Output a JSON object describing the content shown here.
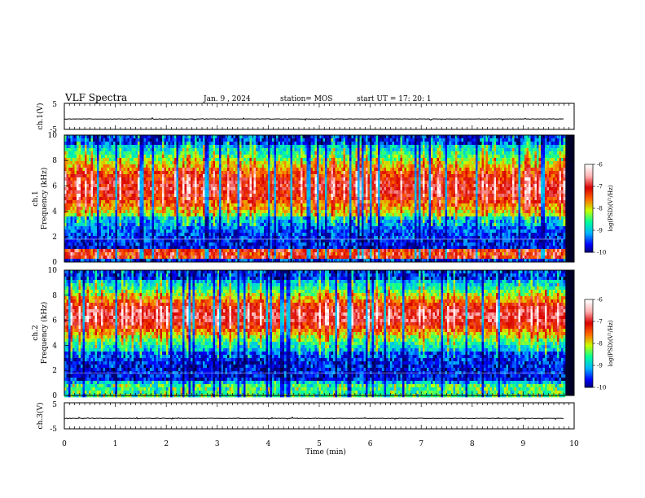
{
  "header": {
    "title": "VLF Spectra",
    "date": "Jan. 9 , 2024",
    "station": "station= MOS",
    "start": "start UT = 17: 20: 1"
  },
  "panels": {
    "ch1v_label": "ch.1(V)",
    "ch1_label": "ch.1\nFrequency (kHz)",
    "ch2_label": "ch.2\nFrequency (kHz)",
    "ch3v_label": "ch.3(V)",
    "colorbar_label": "log(PSD)(V²/Hz)"
  },
  "colors": {
    "colormap": [
      "#000033",
      "#0000ff",
      "#00b4ff",
      "#00ff9a",
      "#c8ff00",
      "#ff6a00",
      "#d80000",
      "#ffb0b0",
      "#ffffff"
    ]
  },
  "chart_data": [
    {
      "type": "line",
      "name": "ch.1(V)",
      "ylabel": "ch.1(V)",
      "ylim": [
        -5,
        5
      ],
      "yticks": [
        "5",
        "-5"
      ],
      "xlim": [
        0,
        10
      ],
      "level": -1
    },
    {
      "type": "heatmap",
      "ylabel": "Frequency (kHz)",
      "ylim": [
        0,
        10
      ],
      "yticks": [
        "0",
        "2",
        "4",
        "6",
        "8",
        "10"
      ],
      "xlim": [
        0,
        10
      ],
      "x_end": 9.8,
      "colorbar": {
        "ticks": [
          "-6",
          "-7",
          "-8",
          "-9",
          "-10"
        ],
        "range": [
          -10,
          -6
        ],
        "label": "log(PSD)(V²/Hz)"
      }
    },
    {
      "type": "heatmap",
      "ylabel": "Frequency (kHz)",
      "ylim": [
        0,
        10
      ],
      "yticks": [
        "0",
        "2",
        "4",
        "6",
        "8",
        "10"
      ],
      "xlim": [
        0,
        10
      ],
      "x_end": 9.8,
      "colorbar": {
        "ticks": [
          "-6",
          "-7",
          "-8",
          "-9",
          "-10"
        ],
        "range": [
          -10,
          -6
        ],
        "label": "log(PSD)(V²/Hz)"
      }
    },
    {
      "type": "line",
      "name": "ch.3(V)",
      "ylabel": "ch.3(V)",
      "ylim": [
        -5,
        5
      ],
      "yticks": [
        "5",
        "-5"
      ],
      "xlim": [
        0,
        10
      ],
      "level": -1,
      "xlabel": "Time (min)",
      "xticks": [
        "0",
        "1",
        "2",
        "3",
        "4",
        "5",
        "6",
        "7",
        "8",
        "9",
        "10"
      ]
    }
  ]
}
